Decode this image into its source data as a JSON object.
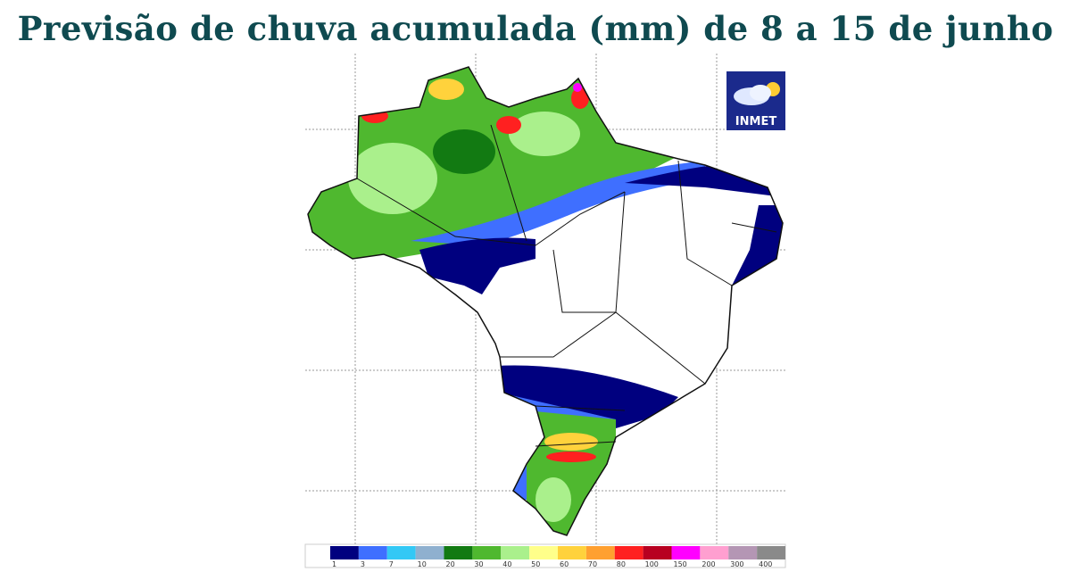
{
  "title": "Previsão de chuva acumulada (mm) de 8 a 15 de junho",
  "logo": "INMET",
  "legend": {
    "colors": [
      "#00007f",
      "#3f6fff",
      "#33c8f5",
      "#8fb0cf",
      "#127a12",
      "#4fb82f",
      "#aaf08c",
      "#ffff8a",
      "#ffd23c",
      "#ffa030",
      "#ff2020",
      "#b80020",
      "#ff00ff",
      "#ff9fd0",
      "#b496b4",
      "#8a8a8a"
    ],
    "labels": [
      1,
      3,
      7,
      10,
      20,
      30,
      40,
      50,
      60,
      70,
      80,
      100,
      150,
      200,
      300,
      400
    ]
  }
}
